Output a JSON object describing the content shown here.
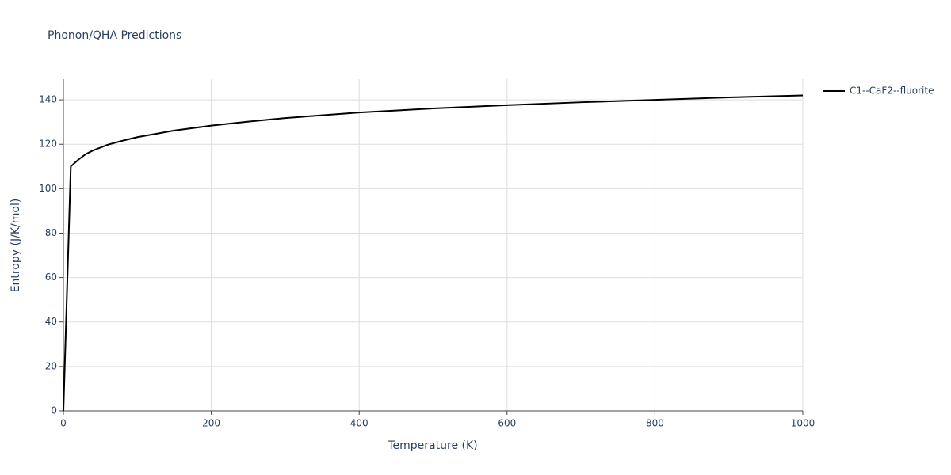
{
  "chart_data": {
    "type": "line",
    "title": "Phonon/QHA Predictions",
    "x_label": "Temperature (K)",
    "y_label": "Entropy (J/K/mol)",
    "x": [
      0,
      10,
      20,
      30,
      40,
      60,
      80,
      100,
      150,
      200,
      250,
      300,
      400,
      500,
      600,
      700,
      800,
      900,
      1000
    ],
    "series": [
      {
        "name": "C1--CaF2--fluorite",
        "color": "#000000",
        "values": [
          0,
          110,
          113,
          115.5,
          117.2,
          119.8,
          121.6,
          123.2,
          126.2,
          128.4,
          130.2,
          131.8,
          134.3,
          136.1,
          137.6,
          138.9,
          140.0,
          141.1,
          142.0
        ]
      }
    ],
    "xlim": [
      0,
      1000
    ],
    "xticks": [
      0,
      200,
      400,
      600,
      800,
      1000
    ],
    "ylim": [
      0,
      149.3
    ],
    "yticks": [
      0,
      20,
      40,
      60,
      80,
      100,
      120,
      140
    ],
    "grid": true
  }
}
